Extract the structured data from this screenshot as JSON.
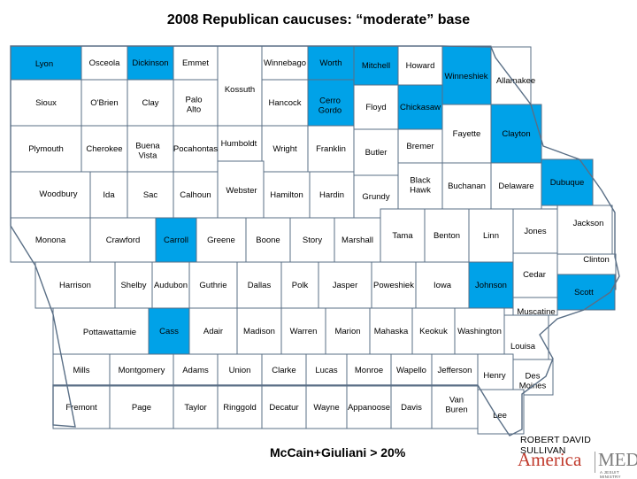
{
  "title": "2008 Republican caucuses: “moderate” base",
  "legend_caption": "McCain+Giuliani  > 20%",
  "credit": "ROBERT DAVID SULLIVAN",
  "brand": {
    "left": "America",
    "right": "MEDIA",
    "tagline": "A JESUIT MINISTRY"
  },
  "colors": {
    "highlight": "#00a2e8",
    "plain": "#ffffff",
    "border": "#5a6f86",
    "brand_red": "#c0392b"
  },
  "counties": [
    {
      "name": "Lyon",
      "highlighted": true
    },
    {
      "name": "Osceola",
      "highlighted": false
    },
    {
      "name": "Dickinson",
      "highlighted": true
    },
    {
      "name": "Emmet",
      "highlighted": false
    },
    {
      "name": "Kossuth",
      "highlighted": false
    },
    {
      "name": "Winnebago",
      "highlighted": false
    },
    {
      "name": "Worth",
      "highlighted": true
    },
    {
      "name": "Mitchell",
      "highlighted": true
    },
    {
      "name": "Howard",
      "highlighted": false
    },
    {
      "name": "Winneshiek",
      "highlighted": true
    },
    {
      "name": "Allamakee",
      "highlighted": false
    },
    {
      "name": "Sioux",
      "highlighted": false
    },
    {
      "name": "O'Brien",
      "highlighted": false
    },
    {
      "name": "Clay",
      "highlighted": false
    },
    {
      "name": "Palo Alto",
      "highlighted": false
    },
    {
      "name": "Hancock",
      "highlighted": false
    },
    {
      "name": "Cerro Gordo",
      "highlighted": true
    },
    {
      "name": "Floyd",
      "highlighted": false
    },
    {
      "name": "Chickasaw",
      "highlighted": true
    },
    {
      "name": "Fayette",
      "highlighted": false
    },
    {
      "name": "Clayton",
      "highlighted": true
    },
    {
      "name": "Plymouth",
      "highlighted": false
    },
    {
      "name": "Cherokee",
      "highlighted": false
    },
    {
      "name": "Buena Vista",
      "highlighted": false
    },
    {
      "name": "Pocahontas",
      "highlighted": false
    },
    {
      "name": "Humboldt",
      "highlighted": false
    },
    {
      "name": "Wright",
      "highlighted": false
    },
    {
      "name": "Franklin",
      "highlighted": false
    },
    {
      "name": "Butler",
      "highlighted": false
    },
    {
      "name": "Bremer",
      "highlighted": false
    },
    {
      "name": "Black Hawk",
      "highlighted": false
    },
    {
      "name": "Buchanan",
      "highlighted": false
    },
    {
      "name": "Delaware",
      "highlighted": false
    },
    {
      "name": "Dubuque",
      "highlighted": true
    },
    {
      "name": "Woodbury",
      "highlighted": false
    },
    {
      "name": "Ida",
      "highlighted": false
    },
    {
      "name": "Sac",
      "highlighted": false
    },
    {
      "name": "Calhoun",
      "highlighted": false
    },
    {
      "name": "Webster",
      "highlighted": false
    },
    {
      "name": "Hamilton",
      "highlighted": false
    },
    {
      "name": "Hardin",
      "highlighted": false
    },
    {
      "name": "Grundy",
      "highlighted": false
    },
    {
      "name": "Tama",
      "highlighted": false
    },
    {
      "name": "Benton",
      "highlighted": false
    },
    {
      "name": "Linn",
      "highlighted": false
    },
    {
      "name": "Jones",
      "highlighted": false
    },
    {
      "name": "Jackson",
      "highlighted": false
    },
    {
      "name": "Monona",
      "highlighted": false
    },
    {
      "name": "Crawford",
      "highlighted": false
    },
    {
      "name": "Carroll",
      "highlighted": true
    },
    {
      "name": "Greene",
      "highlighted": false
    },
    {
      "name": "Boone",
      "highlighted": false
    },
    {
      "name": "Story",
      "highlighted": false
    },
    {
      "name": "Marshall",
      "highlighted": false
    },
    {
      "name": "Clinton",
      "highlighted": false
    },
    {
      "name": "Harrison",
      "highlighted": false
    },
    {
      "name": "Shelby",
      "highlighted": false
    },
    {
      "name": "Audubon",
      "highlighted": false
    },
    {
      "name": "Guthrie",
      "highlighted": false
    },
    {
      "name": "Dallas",
      "highlighted": false
    },
    {
      "name": "Polk",
      "highlighted": false
    },
    {
      "name": "Jasper",
      "highlighted": false
    },
    {
      "name": "Poweshiek",
      "highlighted": false
    },
    {
      "name": "Iowa",
      "highlighted": false
    },
    {
      "name": "Johnson",
      "highlighted": true
    },
    {
      "name": "Cedar",
      "highlighted": false
    },
    {
      "name": "Scott",
      "highlighted": true
    },
    {
      "name": "Muscatine",
      "highlighted": false
    },
    {
      "name": "Pottawattamie",
      "highlighted": false
    },
    {
      "name": "Cass",
      "highlighted": true
    },
    {
      "name": "Adair",
      "highlighted": false
    },
    {
      "name": "Madison",
      "highlighted": false
    },
    {
      "name": "Warren",
      "highlighted": false
    },
    {
      "name": "Marion",
      "highlighted": false
    },
    {
      "name": "Mahaska",
      "highlighted": false
    },
    {
      "name": "Keokuk",
      "highlighted": false
    },
    {
      "name": "Washington",
      "highlighted": false
    },
    {
      "name": "Louisa",
      "highlighted": false
    },
    {
      "name": "Mills",
      "highlighted": false
    },
    {
      "name": "Montgomery",
      "highlighted": false
    },
    {
      "name": "Adams",
      "highlighted": false
    },
    {
      "name": "Union",
      "highlighted": false
    },
    {
      "name": "Clarke",
      "highlighted": false
    },
    {
      "name": "Lucas",
      "highlighted": false
    },
    {
      "name": "Monroe",
      "highlighted": false
    },
    {
      "name": "Wapello",
      "highlighted": false
    },
    {
      "name": "Jefferson",
      "highlighted": false
    },
    {
      "name": "Henry",
      "highlighted": false
    },
    {
      "name": "Des Moines",
      "highlighted": false
    },
    {
      "name": "Fremont",
      "highlighted": false
    },
    {
      "name": "Page",
      "highlighted": false
    },
    {
      "name": "Taylor",
      "highlighted": false
    },
    {
      "name": "Ringgold",
      "highlighted": false
    },
    {
      "name": "Decatur",
      "highlighted": false
    },
    {
      "name": "Wayne",
      "highlighted": false
    },
    {
      "name": "Appanoose",
      "highlighted": false
    },
    {
      "name": "Davis",
      "highlighted": false
    },
    {
      "name": "Van Buren",
      "highlighted": false
    },
    {
      "name": "Lee",
      "highlighted": false
    }
  ]
}
